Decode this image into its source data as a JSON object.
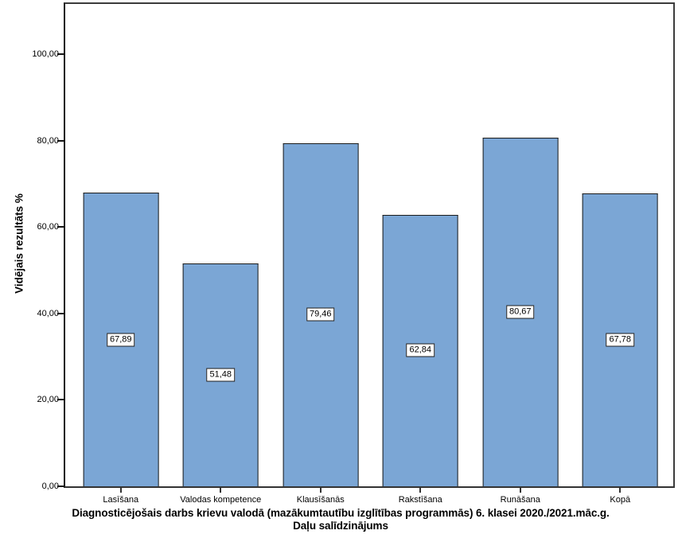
{
  "chart_data": {
    "type": "bar",
    "title": "Diagnosticējošais darbs krievu valodā (mazākumtautību izglītības programmās) 6. klasei 2020./2021.māc.g.",
    "subtitle": "Daļu salīdzinājums",
    "ylabel": "Vidējais rezultāts %",
    "xlabel": "",
    "categories": [
      "Lasīšana",
      "Valodas kompetence",
      "Klausīšanās",
      "Rakstīšana",
      "Runāšana",
      "Kopā"
    ],
    "values": [
      67.89,
      51.48,
      79.46,
      62.84,
      80.67,
      67.78
    ],
    "value_labels": [
      "67,89",
      "51,48",
      "79,46",
      "62,84",
      "80,67",
      "67,78"
    ],
    "y_tick_values": [
      0,
      20,
      40,
      60,
      80,
      100
    ],
    "y_tick_labels": [
      "0,00",
      "20,00",
      "40,00",
      "60,00",
      "80,00",
      "100,00"
    ],
    "ylim": [
      0,
      111.6
    ],
    "grid": false,
    "legend": "none",
    "value_label_position": "middle-of-bar",
    "bar_color": "#7BA6D5",
    "bar_border_color": "#1b1b1b",
    "background_color": "#ffffff"
  }
}
